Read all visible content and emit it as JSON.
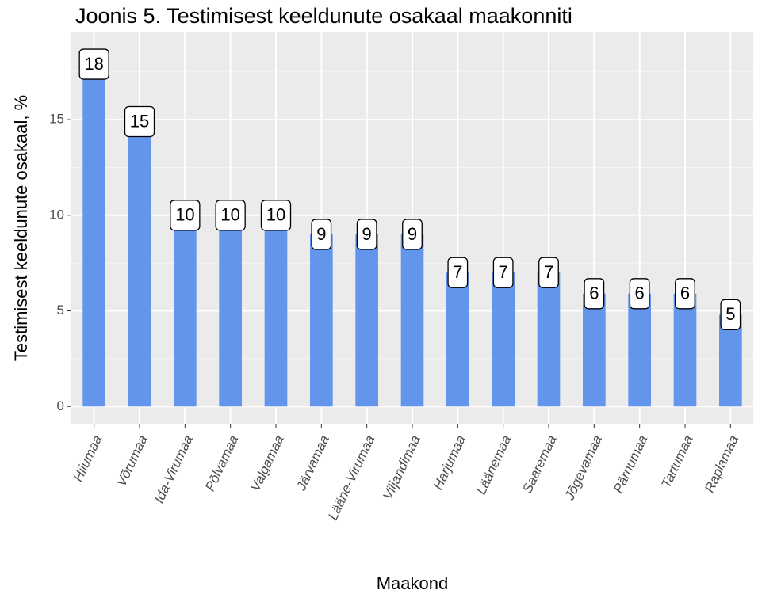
{
  "chart_data": {
    "type": "bar",
    "title": "Joonis 5. Testimisest keeldunute osakaal maakonniti",
    "x_label": "Maakond",
    "y_label": "Testimisest keeldunute osakaal, %",
    "categories": [
      "Hiiumaa",
      "Võrumaa",
      "Ida-Virumaa",
      "Põlvamaa",
      "Valgamaa",
      "Järvamaa",
      "Lääne-Virumaa",
      "Viljandimaa",
      "Harjumaa",
      "Läänemaa",
      "Saaremaa",
      "Jõgevamaa",
      "Pärnumaa",
      "Tartumaa",
      "Raplamaa"
    ],
    "values": [
      17.9,
      14.9,
      10,
      10,
      10,
      9,
      9,
      9,
      7,
      7,
      7,
      5.9,
      5.9,
      5.9,
      4.8
    ],
    "value_labels": [
      "18",
      "15",
      "10",
      "10",
      "10",
      "9",
      "9",
      "9",
      "7",
      "7",
      "7",
      "6",
      "6",
      "6",
      "5"
    ],
    "color": "#6495ED",
    "ylim": [
      -0.9,
      19.6
    ],
    "yticks": [
      0,
      5,
      10,
      15
    ],
    "minor_yticks": [
      2.5,
      7.5,
      12.5,
      17.5
    ],
    "grid": true
  }
}
